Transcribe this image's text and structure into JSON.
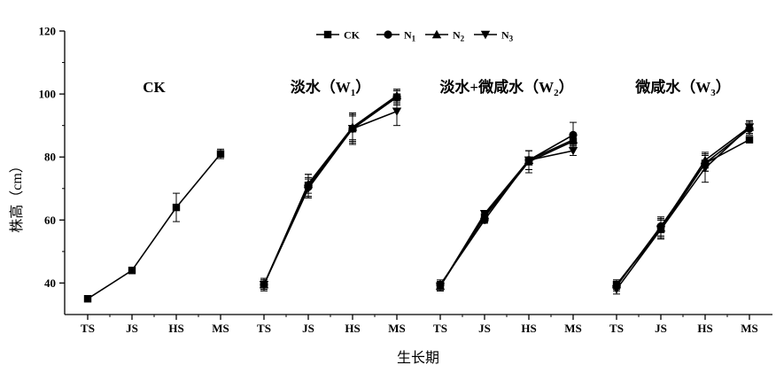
{
  "chart_data": {
    "type": "line",
    "ylabel": "株高（cm）",
    "xlabel": "生长期",
    "ylim": [
      30,
      120
    ],
    "yticks": [
      40,
      60,
      80,
      100,
      120
    ],
    "categories": [
      "TS",
      "JS",
      "HS",
      "MS"
    ],
    "legend": {
      "placement": "top-right",
      "entries": [
        {
          "name": "CK",
          "sub": "",
          "marker": "square"
        },
        {
          "name": "N",
          "sub": "1",
          "marker": "circle"
        },
        {
          "name": "N",
          "sub": "2",
          "marker": "triangle-up"
        },
        {
          "name": "N",
          "sub": "3",
          "marker": "triangle-down"
        }
      ]
    },
    "panels": [
      {
        "title": "CK",
        "title_sub": "",
        "title_suffix": "",
        "series": [
          {
            "name": "CK",
            "marker": "square",
            "values": [
              35.0,
              44.0,
              64.0,
              81.0
            ],
            "errors": [
              0.8,
              1.0,
              4.5,
              1.5
            ]
          }
        ]
      },
      {
        "title": "淡水（W",
        "title_sub": "1",
        "title_suffix": "）",
        "series": [
          {
            "name": "CK",
            "marker": "square",
            "values": [
              39.5,
              71.0,
              89.0,
              99.0
            ],
            "errors": [
              2.0,
              3.5,
              5.0,
              2.5
            ]
          },
          {
            "name": "N1",
            "marker": "circle",
            "values": [
              39.5,
              70.5,
              89.0,
              99.0
            ],
            "errors": [
              1.5,
              3.0,
              4.5,
              2.0
            ]
          },
          {
            "name": "N2",
            "marker": "triangle-up",
            "values": [
              39.5,
              71.5,
              89.5,
              99.5
            ],
            "errors": [
              1.5,
              3.0,
              4.0,
              2.0
            ]
          },
          {
            "name": "N3",
            "marker": "triangle-down",
            "values": [
              39.5,
              70.0,
              89.0,
              94.5
            ],
            "errors": [
              1.5,
              3.0,
              4.0,
              4.5
            ]
          }
        ]
      },
      {
        "title": "淡水+微咸水（W",
        "title_sub": "2",
        "title_suffix": "）",
        "series": [
          {
            "name": "CK",
            "marker": "square",
            "values": [
              39.0,
              61.0,
              78.5,
              85.0
            ],
            "errors": [
              1.5,
              1.0,
              3.5,
              2.0
            ]
          },
          {
            "name": "N1",
            "marker": "circle",
            "values": [
              39.5,
              60.0,
              79.0,
              87.0
            ],
            "errors": [
              1.5,
              1.0,
              3.0,
              4.0
            ]
          },
          {
            "name": "N2",
            "marker": "triangle-up",
            "values": [
              39.0,
              61.5,
              79.0,
              85.5
            ],
            "errors": [
              1.5,
              1.0,
              3.0,
              2.0
            ]
          },
          {
            "name": "N3",
            "marker": "triangle-down",
            "values": [
              39.0,
              62.0,
              79.0,
              82.0
            ],
            "errors": [
              1.5,
              1.0,
              3.0,
              1.5
            ]
          }
        ]
      },
      {
        "title": "微咸水（W",
        "title_sub": "3",
        "title_suffix": "）",
        "series": [
          {
            "name": "CK",
            "marker": "square",
            "values": [
              39.5,
              57.0,
              78.0,
              85.5
            ],
            "errors": [
              1.5,
              3.0,
              2.5,
              1.0
            ]
          },
          {
            "name": "N1",
            "marker": "circle",
            "values": [
              39.0,
              58.0,
              78.0,
              89.0
            ],
            "errors": [
              1.5,
              3.0,
              2.5,
              2.0
            ]
          },
          {
            "name": "N2",
            "marker": "triangle-up",
            "values": [
              39.5,
              57.5,
              79.0,
              89.5
            ],
            "errors": [
              1.5,
              3.0,
              2.5,
              2.0
            ]
          },
          {
            "name": "N3",
            "marker": "triangle-down",
            "values": [
              38.0,
              57.0,
              76.5,
              89.5
            ],
            "errors": [
              1.5,
              3.0,
              4.5,
              2.0
            ]
          }
        ]
      }
    ]
  }
}
